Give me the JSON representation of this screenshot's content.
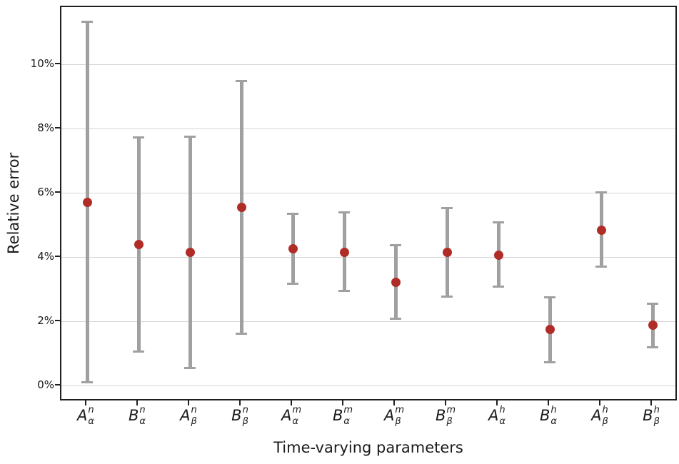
{
  "colors": {
    "marker": "#b02c26",
    "error_bar": "#a0a0a0",
    "gridline": "#d6d6d6",
    "spine": "#1f1f1f",
    "text": "#1a1a1a",
    "background": "#ffffff"
  },
  "chart_data": {
    "type": "scatter",
    "subtype": "point-with-error-bars",
    "title": "",
    "xlabel": "Time-varying parameters",
    "ylabel": "Relative error",
    "ylim": [
      -0.5,
      11.8
    ],
    "y_unit": "%",
    "grid": "horizontal-only",
    "legend": "none",
    "yticks": [
      {
        "value": 0,
        "label": "0%"
      },
      {
        "value": 2,
        "label": "2%"
      },
      {
        "value": 4,
        "label": "4%"
      },
      {
        "value": 6,
        "label": "6%"
      },
      {
        "value": 8,
        "label": "8%"
      },
      {
        "value": 10,
        "label": "10%"
      }
    ],
    "categories": [
      {
        "id": "A_alpha_n",
        "base": "A",
        "sup": "n",
        "sub": "α"
      },
      {
        "id": "B_alpha_n",
        "base": "B",
        "sup": "n",
        "sub": "α"
      },
      {
        "id": "A_beta_n",
        "base": "A",
        "sup": "n",
        "sub": "β"
      },
      {
        "id": "B_beta_n",
        "base": "B",
        "sup": "n",
        "sub": "β"
      },
      {
        "id": "A_alpha_m",
        "base": "A",
        "sup": "m",
        "sub": "α"
      },
      {
        "id": "B_alpha_m",
        "base": "B",
        "sup": "m",
        "sub": "α"
      },
      {
        "id": "A_beta_m",
        "base": "A",
        "sup": "m",
        "sub": "β"
      },
      {
        "id": "B_beta_m",
        "base": "B",
        "sup": "m",
        "sub": "β"
      },
      {
        "id": "A_alpha_h",
        "base": "A",
        "sup": "h",
        "sub": "α"
      },
      {
        "id": "B_alpha_h",
        "base": "B",
        "sup": "h",
        "sub": "α"
      },
      {
        "id": "A_beta_h",
        "base": "A",
        "sup": "h",
        "sub": "β"
      },
      {
        "id": "B_beta_h",
        "base": "B",
        "sup": "h",
        "sub": "β"
      }
    ],
    "series": [
      {
        "name": "relative_error",
        "marker": "circle",
        "values": [
          5.72,
          4.4,
          4.17,
          5.57,
          4.27,
          4.17,
          3.23,
          4.15,
          4.08,
          1.76,
          4.85,
          1.9
        ],
        "error_low": [
          0.1,
          1.05,
          0.55,
          1.62,
          3.18,
          2.95,
          2.07,
          2.78,
          3.07,
          0.73,
          3.7,
          1.18
        ],
        "error_high": [
          11.35,
          7.75,
          7.78,
          9.5,
          5.38,
          5.42,
          4.4,
          5.55,
          5.1,
          2.78,
          6.05,
          2.57
        ]
      }
    ]
  }
}
